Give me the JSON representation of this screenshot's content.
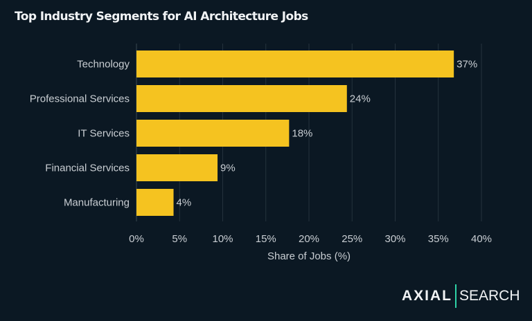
{
  "chart_data": {
    "type": "bar",
    "orientation": "horizontal",
    "title": "Top Industry Segments for AI Architecture Jobs",
    "xlabel": "Share of Jobs (%)",
    "ylabel": "",
    "categories": [
      "Technology",
      "Professional Services",
      "IT Services",
      "Financial Services",
      "Manufacturing"
    ],
    "values": [
      36.8,
      24.4,
      17.7,
      9.4,
      4.3
    ],
    "data_labels": [
      "37%",
      "24%",
      "18%",
      "9%",
      "4%"
    ],
    "xlim": [
      0,
      40
    ],
    "xticks": [
      0,
      5,
      10,
      15,
      20,
      25,
      30,
      35,
      40
    ],
    "xtick_labels": [
      "0%",
      "5%",
      "10%",
      "15%",
      "20%",
      "25%",
      "30%",
      "35%",
      "40%"
    ],
    "grid": "vertical",
    "bar_color": "#f5c320",
    "background": "#0b1823"
  },
  "logo": {
    "left": "AXIAL",
    "right": "SEARCH",
    "accent": "#2ed3a7"
  }
}
